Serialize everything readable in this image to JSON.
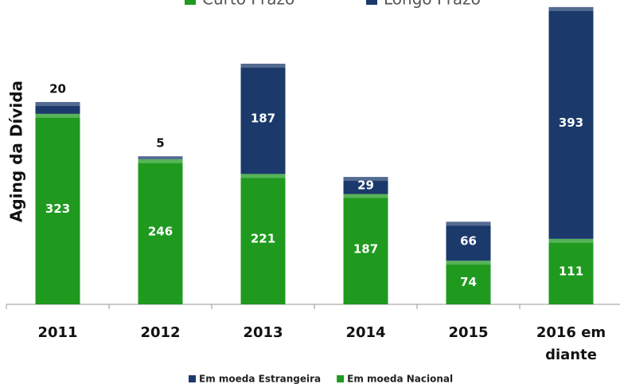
{
  "chart_data": {
    "type": "stacked_bar",
    "y_label": "Aging da Dívida",
    "top_legend": [
      {
        "name": "Curto Prazo",
        "color": "#1f9a1f"
      },
      {
        "name": "Longo Prazo",
        "color": "#1b3a6b"
      }
    ],
    "categories": [
      "2011",
      "2012",
      "2013",
      "2014",
      "2015",
      "2016 em diante"
    ],
    "series": [
      {
        "name": "Em moeda Nacional",
        "color": "#1f9a1f",
        "values": [
          323,
          246,
          221,
          187,
          74,
          111
        ]
      },
      {
        "name": "Em moeda Estrangeira",
        "color": "#1b3a6b",
        "values": [
          20,
          5,
          187,
          29,
          66,
          393
        ]
      }
    ],
    "legend_order": [
      1,
      0
    ],
    "ylim": [
      0,
      516
    ]
  }
}
